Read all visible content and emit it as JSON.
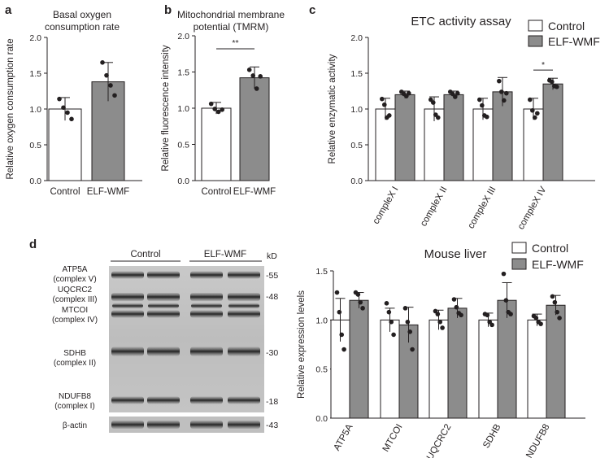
{
  "panels": {
    "a": {
      "letter": "a"
    },
    "b": {
      "letter": "b"
    },
    "c": {
      "letter": "c"
    },
    "d": {
      "letter": "d"
    }
  },
  "legend": {
    "control": "Control",
    "treatment": "ELF-WMF"
  },
  "colors": {
    "control": "#ffffff",
    "treatment": "#8c8c8c",
    "axis": "#231f20"
  },
  "blot": {
    "group_labels": [
      "Control",
      "ELF-WMF"
    ],
    "kd_label": "kD",
    "bands": [
      {
        "name": "ATP5A",
        "sub": "(complex V)",
        "marker": "-55"
      },
      {
        "name": "UQCRC2",
        "sub": "(complex III)",
        "marker": "-48"
      },
      {
        "name": "MTCOI",
        "sub": "(complex IV)",
        "marker": ""
      },
      {
        "name": "SDHB",
        "sub": "(complex II)",
        "marker": "-30"
      },
      {
        "name": "NDUFB8",
        "sub": "(complex I)",
        "marker": "-18"
      }
    ],
    "loading": {
      "name": "β-actin",
      "marker": "-43"
    }
  },
  "chart_data": [
    {
      "id": "a",
      "type": "bar",
      "title": "Basal oxygen consumption rate",
      "ylabel": "Relative oxygen consumption rate",
      "categories": [
        "Control",
        "ELF-WMF"
      ],
      "values": [
        1.0,
        1.38
      ],
      "errors": [
        0.16,
        0.27
      ],
      "points": [
        [
          1.14,
          1.02,
          0.95,
          0.86
        ],
        [
          1.65,
          1.47,
          1.33,
          1.19
        ]
      ],
      "ylim": [
        0,
        2.0
      ],
      "yticks": [
        0.0,
        0.5,
        1.0,
        1.5,
        2.0
      ],
      "significance": ""
    },
    {
      "id": "b",
      "type": "bar",
      "title": "Mitochondrial membrane potential (TMRM)",
      "ylabel": "Relative fluorescence intensity",
      "categories": [
        "Control",
        "ELF-WMF"
      ],
      "values": [
        1.0,
        1.42
      ],
      "errors": [
        0.08,
        0.15
      ],
      "points": [
        [
          1.06,
          0.99,
          0.95,
          0.98
        ],
        [
          1.53,
          1.45,
          1.27,
          1.44
        ]
      ],
      "ylim": [
        0,
        2.0
      ],
      "yticks": [
        0.0,
        0.5,
        1.0,
        1.5,
        2.0
      ],
      "significance": "**"
    },
    {
      "id": "c",
      "type": "bar",
      "title": "ETC activity assay",
      "ylabel": "Relative enzymatic activity",
      "categories": [
        "compleX I",
        "compleX II",
        "compleX III",
        "compleX IV"
      ],
      "series": [
        {
          "name": "Control",
          "values": [
            1.0,
            1.0,
            1.0,
            1.0
          ],
          "errors": [
            0.15,
            0.17,
            0.15,
            0.15
          ],
          "points": [
            [
              1.14,
              1.06,
              0.88,
              0.91
            ],
            [
              1.13,
              1.09,
              0.92,
              0.88
            ],
            [
              1.13,
              1.05,
              0.91,
              0.89
            ],
            [
              1.13,
              0.98,
              0.88,
              0.94
            ]
          ]
        },
        {
          "name": "ELF-WMF",
          "values": [
            1.2,
            1.2,
            1.24,
            1.35
          ],
          "errors": [
            0.05,
            0.05,
            0.2,
            0.08
          ],
          "points": [
            [
              1.24,
              1.21,
              1.18,
              1.22
            ],
            [
              1.24,
              1.21,
              1.17,
              1.22
            ],
            [
              1.39,
              1.24,
              1.12,
              1.22
            ],
            [
              1.4,
              1.38,
              1.32,
              1.31
            ]
          ]
        }
      ],
      "ylim": [
        0,
        2.0
      ],
      "yticks": [
        0.0,
        0.5,
        1.0,
        1.5,
        2.0
      ],
      "significance": [
        {
          "category": "compleX IV",
          "label": "*"
        }
      ]
    },
    {
      "id": "d",
      "type": "bar",
      "title": "Mouse liver",
      "ylabel": "Relative expression levels",
      "categories": [
        "ATP5A",
        "MTCOI",
        "UQCRC2",
        "SDHB",
        "NDUFB8"
      ],
      "series": [
        {
          "name": "Control",
          "values": [
            1.0,
            1.0,
            1.0,
            1.0,
            1.0
          ],
          "errors": [
            0.22,
            0.12,
            0.1,
            0.07,
            0.06
          ],
          "points": [
            [
              1.28,
              1.08,
              0.85,
              0.7
            ],
            [
              1.17,
              1.08,
              0.98,
              0.85
            ],
            [
              1.09,
              1.06,
              0.98,
              0.92
            ],
            [
              1.06,
              1.05,
              0.98,
              0.95
            ],
            [
              1.04,
              1.02,
              0.98,
              0.96
            ]
          ]
        },
        {
          "name": "ELF-WMF",
          "values": [
            1.2,
            0.95,
            1.12,
            1.2,
            1.15
          ],
          "errors": [
            0.08,
            0.18,
            0.1,
            0.18,
            0.1
          ],
          "points": [
            [
              1.28,
              1.26,
              1.18,
              1.12
            ],
            [
              1.12,
              0.98,
              0.88,
              0.7
            ],
            [
              1.21,
              1.13,
              1.07,
              1.05
            ],
            [
              1.47,
              1.2,
              1.08,
              1.06
            ],
            [
              1.24,
              1.18,
              1.08,
              1.02
            ]
          ]
        }
      ],
      "ylim": [
        0,
        1.5
      ],
      "yticks": [
        0.0,
        0.5,
        1.0,
        1.5
      ],
      "significance": []
    }
  ]
}
